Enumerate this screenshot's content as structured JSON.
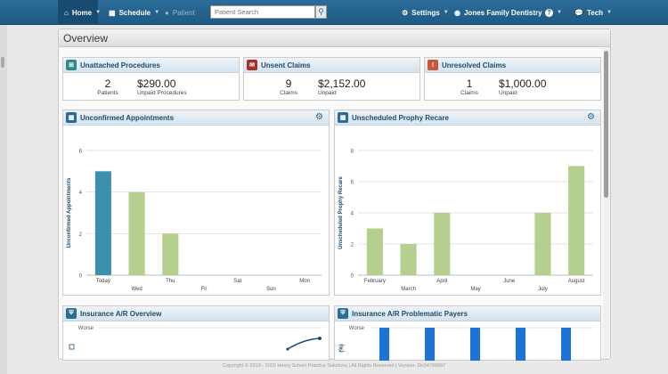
{
  "nav": {
    "home": "Home",
    "schedule": "Schedule",
    "patient": "Patient",
    "search_placeholder": "Patient Search",
    "settings": "Settings",
    "practice": "Jones Family Dentistry",
    "help": "?",
    "user": "Tech"
  },
  "overview": {
    "title": "Overview"
  },
  "summary": {
    "unattached": {
      "title": "Unattached Procedures",
      "count": "2",
      "count_label": "Patients",
      "amount": "$290.00",
      "amount_label": "Unpaid Procedures"
    },
    "unsent": {
      "title": "Unsent Claims",
      "count": "9",
      "count_label": "Claims",
      "amount": "$2,152.00",
      "amount_label": "Unpaid"
    },
    "unresolved": {
      "title": "Unresolved Claims",
      "count": "1",
      "count_label": "Claims",
      "amount": "$1,000.00",
      "amount_label": "Unpaid"
    }
  },
  "colors": {
    "nav": "#1e5a84",
    "bar_blue": "#3d8fae",
    "bar_green": "#b5cf8e",
    "problem_bar": "#1e74d6",
    "line": "#1f4e79"
  },
  "chart_data": [
    {
      "type": "bar",
      "title": "Unconfirmed Appointments",
      "ylabel": "Unconfirmed Appointments",
      "xlabel": "",
      "categories": [
        "Today",
        "Wed",
        "Thu",
        "Fri",
        "Sat",
        "Sun",
        "Mon"
      ],
      "values": [
        5,
        4,
        2,
        0,
        0,
        0,
        0
      ],
      "ylim": [
        0,
        6
      ],
      "yticks": [
        0,
        2,
        4,
        6
      ],
      "grid": true
    },
    {
      "type": "bar",
      "title": "Unscheduled Prophy Recare",
      "ylabel": "Unscheduled Prophy Recare",
      "xlabel": "",
      "categories": [
        "February",
        "March",
        "April",
        "May",
        "June",
        "July",
        "August"
      ],
      "values": [
        3,
        2,
        4,
        0,
        0,
        4,
        7
      ],
      "ylim": [
        0,
        8
      ],
      "yticks": [
        0,
        2,
        4,
        6,
        8
      ],
      "grid": true
    },
    {
      "type": "line",
      "title": "Insurance A/R Overview",
      "ylabel": "",
      "tick_labels": [
        "Worse"
      ],
      "values": []
    },
    {
      "type": "bar",
      "title": "Insurance A/R Problematic Payers",
      "ylabel": "(%)",
      "tick_labels": [
        "Worse"
      ],
      "values": []
    }
  ],
  "footer": "Copyright © 2013 - 2015 Henry Schein Practice Solutions | All Rights Reserved | Version: Dtr24789887"
}
